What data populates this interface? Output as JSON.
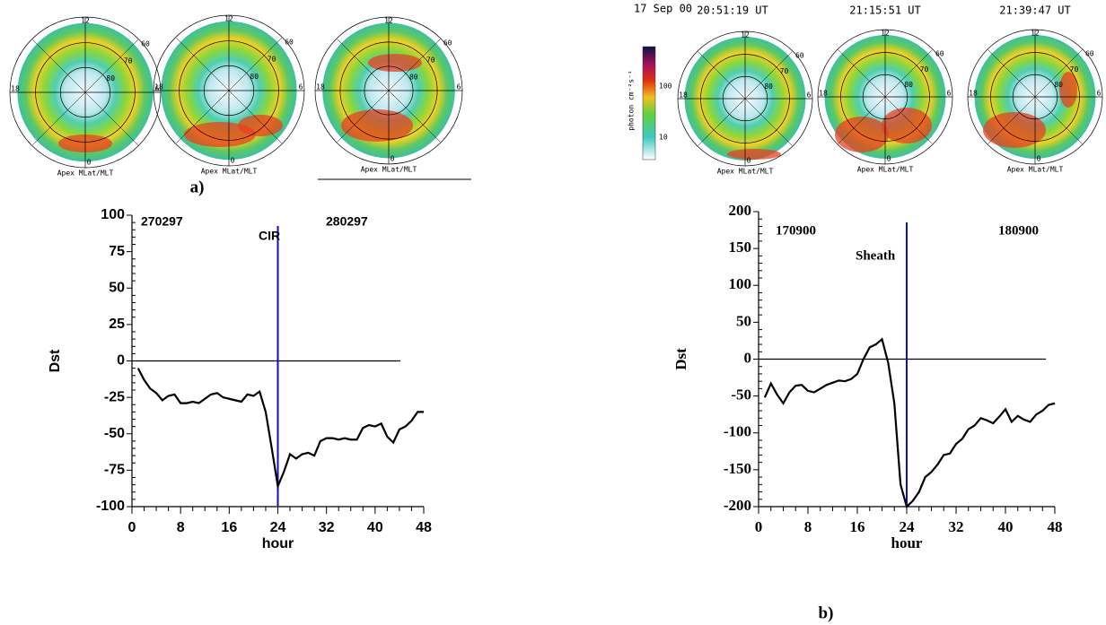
{
  "chart_data": [
    {
      "type": "line",
      "panel_label": "a)",
      "xlabel": "hour",
      "ylabel": "Dst",
      "x": [
        1,
        2,
        3,
        4,
        5,
        6,
        7,
        8,
        9,
        10,
        11,
        12,
        13,
        14,
        15,
        16,
        17,
        18,
        19,
        20,
        21,
        22,
        23,
        24,
        25,
        26,
        27,
        28,
        29,
        30,
        31,
        32,
        33,
        34,
        35,
        36,
        37,
        38,
        39,
        40,
        41,
        42,
        43,
        44,
        45,
        46,
        47,
        48
      ],
      "values": [
        -5,
        -13,
        -19,
        -22,
        -27,
        -24,
        -23,
        -29,
        -29,
        -28,
        -29,
        -26,
        -23,
        -22,
        -25,
        -26,
        -27,
        -28,
        -23,
        -24,
        -21,
        -35,
        -60,
        -86,
        -76,
        -64,
        -67,
        -64,
        -63,
        -65,
        -55,
        -53,
        -53,
        -54,
        -53,
        -54,
        -54,
        -46,
        -44,
        -45,
        -43,
        -52,
        -56,
        -47,
        -45,
        -41,
        -35,
        -35
      ],
      "color": "#000000",
      "xlim": [
        0,
        48
      ],
      "xticks": [
        0,
        8,
        16,
        24,
        32,
        40,
        48
      ],
      "ylim": [
        -100,
        100
      ],
      "yticks": [
        -100,
        -75,
        -50,
        -25,
        0,
        25,
        50,
        75,
        100
      ],
      "annotations": [
        "270297",
        "280297"
      ],
      "vline": {
        "x": 24,
        "label": "CIR",
        "color": "#1010c0"
      }
    },
    {
      "type": "line",
      "panel_label": "b)",
      "xlabel": "hour",
      "ylabel": "Dst",
      "x": [
        1,
        2,
        3,
        4,
        5,
        6,
        7,
        8,
        9,
        10,
        11,
        12,
        13,
        14,
        15,
        16,
        17,
        18,
        19,
        20,
        21,
        22,
        23,
        24,
        25,
        26,
        27,
        28,
        29,
        30,
        31,
        32,
        33,
        34,
        35,
        36,
        37,
        38,
        39,
        40,
        41,
        42,
        43,
        44,
        45,
        46,
        47,
        48
      ],
      "values": [
        -52,
        -33,
        -48,
        -60,
        -45,
        -36,
        -35,
        -43,
        -45,
        -40,
        -35,
        -32,
        -29,
        -30,
        -27,
        -20,
        0,
        16,
        20,
        27,
        -5,
        -60,
        -170,
        -200,
        -192,
        -180,
        -160,
        -153,
        -143,
        -130,
        -128,
        -115,
        -108,
        -95,
        -90,
        -80,
        -83,
        -87,
        -78,
        -68,
        -85,
        -77,
        -82,
        -85,
        -75,
        -70,
        -62,
        -60
      ],
      "color": "#000000",
      "xlim": [
        0,
        48
      ],
      "xticks": [
        0,
        8,
        16,
        24,
        32,
        40,
        48
      ],
      "ylim": [
        -200,
        200
      ],
      "yticks": [
        -200,
        -150,
        -100,
        -50,
        0,
        50,
        100,
        150,
        200
      ],
      "annotations": [
        "170900",
        "180900"
      ],
      "vline": {
        "x": 24,
        "label": "Sheath",
        "color": "#1010c0"
      }
    }
  ],
  "polar": {
    "mlt": [
      "12",
      "18",
      "6",
      "0"
    ],
    "mlat": [
      "80",
      "70",
      "60"
    ],
    "caption": "Apex MLat/MLT",
    "date": "17 Sep 00",
    "times": [
      "20:51:19 UT",
      "21:15:51 UT",
      "21:39:47 UT"
    ],
    "colorbar": {
      "unit": "photon cm⁻²s⁻¹",
      "ticks": [
        "100",
        "10"
      ]
    }
  }
}
